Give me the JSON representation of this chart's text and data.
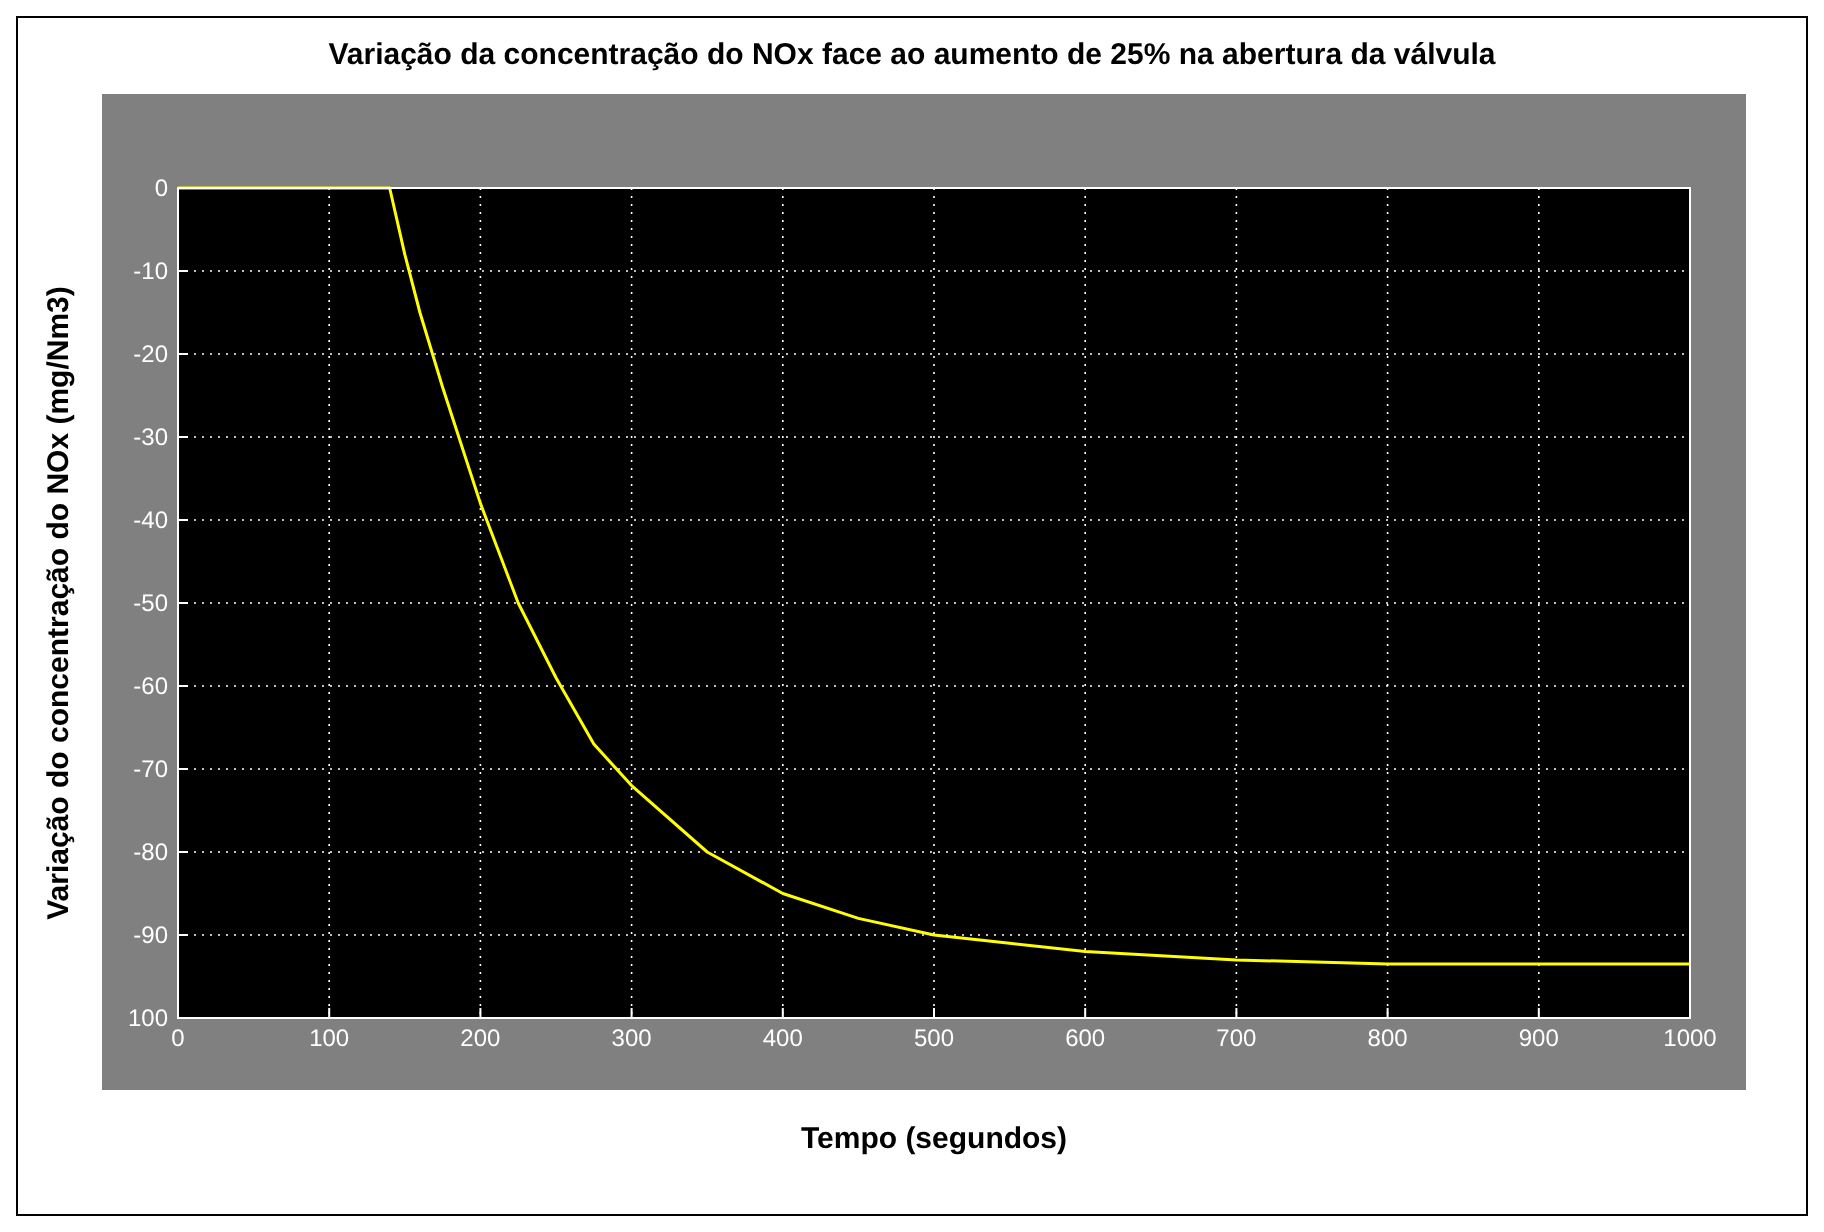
{
  "chart_data": {
    "type": "line",
    "title": "Variação da concentração do NOx face ao aumento de 25% na abertura da válvula",
    "xlabel": "Tempo (segundos)",
    "ylabel": "Variação do concentração do NOx  (mg/Nm3)",
    "x": [
      0,
      140,
      150,
      160,
      175,
      200,
      225,
      250,
      275,
      300,
      350,
      400,
      450,
      500,
      550,
      600,
      700,
      800,
      1000
    ],
    "series": [
      {
        "color": "#ffff00",
        "values": [
          0,
          0,
          -8,
          -15,
          -24,
          -38,
          -50,
          -59,
          -67,
          -72,
          -80,
          -85,
          -88,
          -90,
          -91,
          -92,
          -93,
          -93.5,
          -93.5
        ]
      }
    ],
    "xlim": [
      0,
      1000
    ],
    "xticks": [
      0,
      100,
      200,
      300,
      400,
      500,
      600,
      700,
      800,
      900,
      1000
    ],
    "ylim": [
      -100,
      0
    ],
    "yticks": [
      0,
      -10,
      -20,
      -30,
      -40,
      -50,
      -60,
      -70,
      -80,
      -90,
      {
        "value": -100,
        "label": "100"
      }
    ],
    "grid": true,
    "line_style": "solid",
    "marker": "none"
  }
}
